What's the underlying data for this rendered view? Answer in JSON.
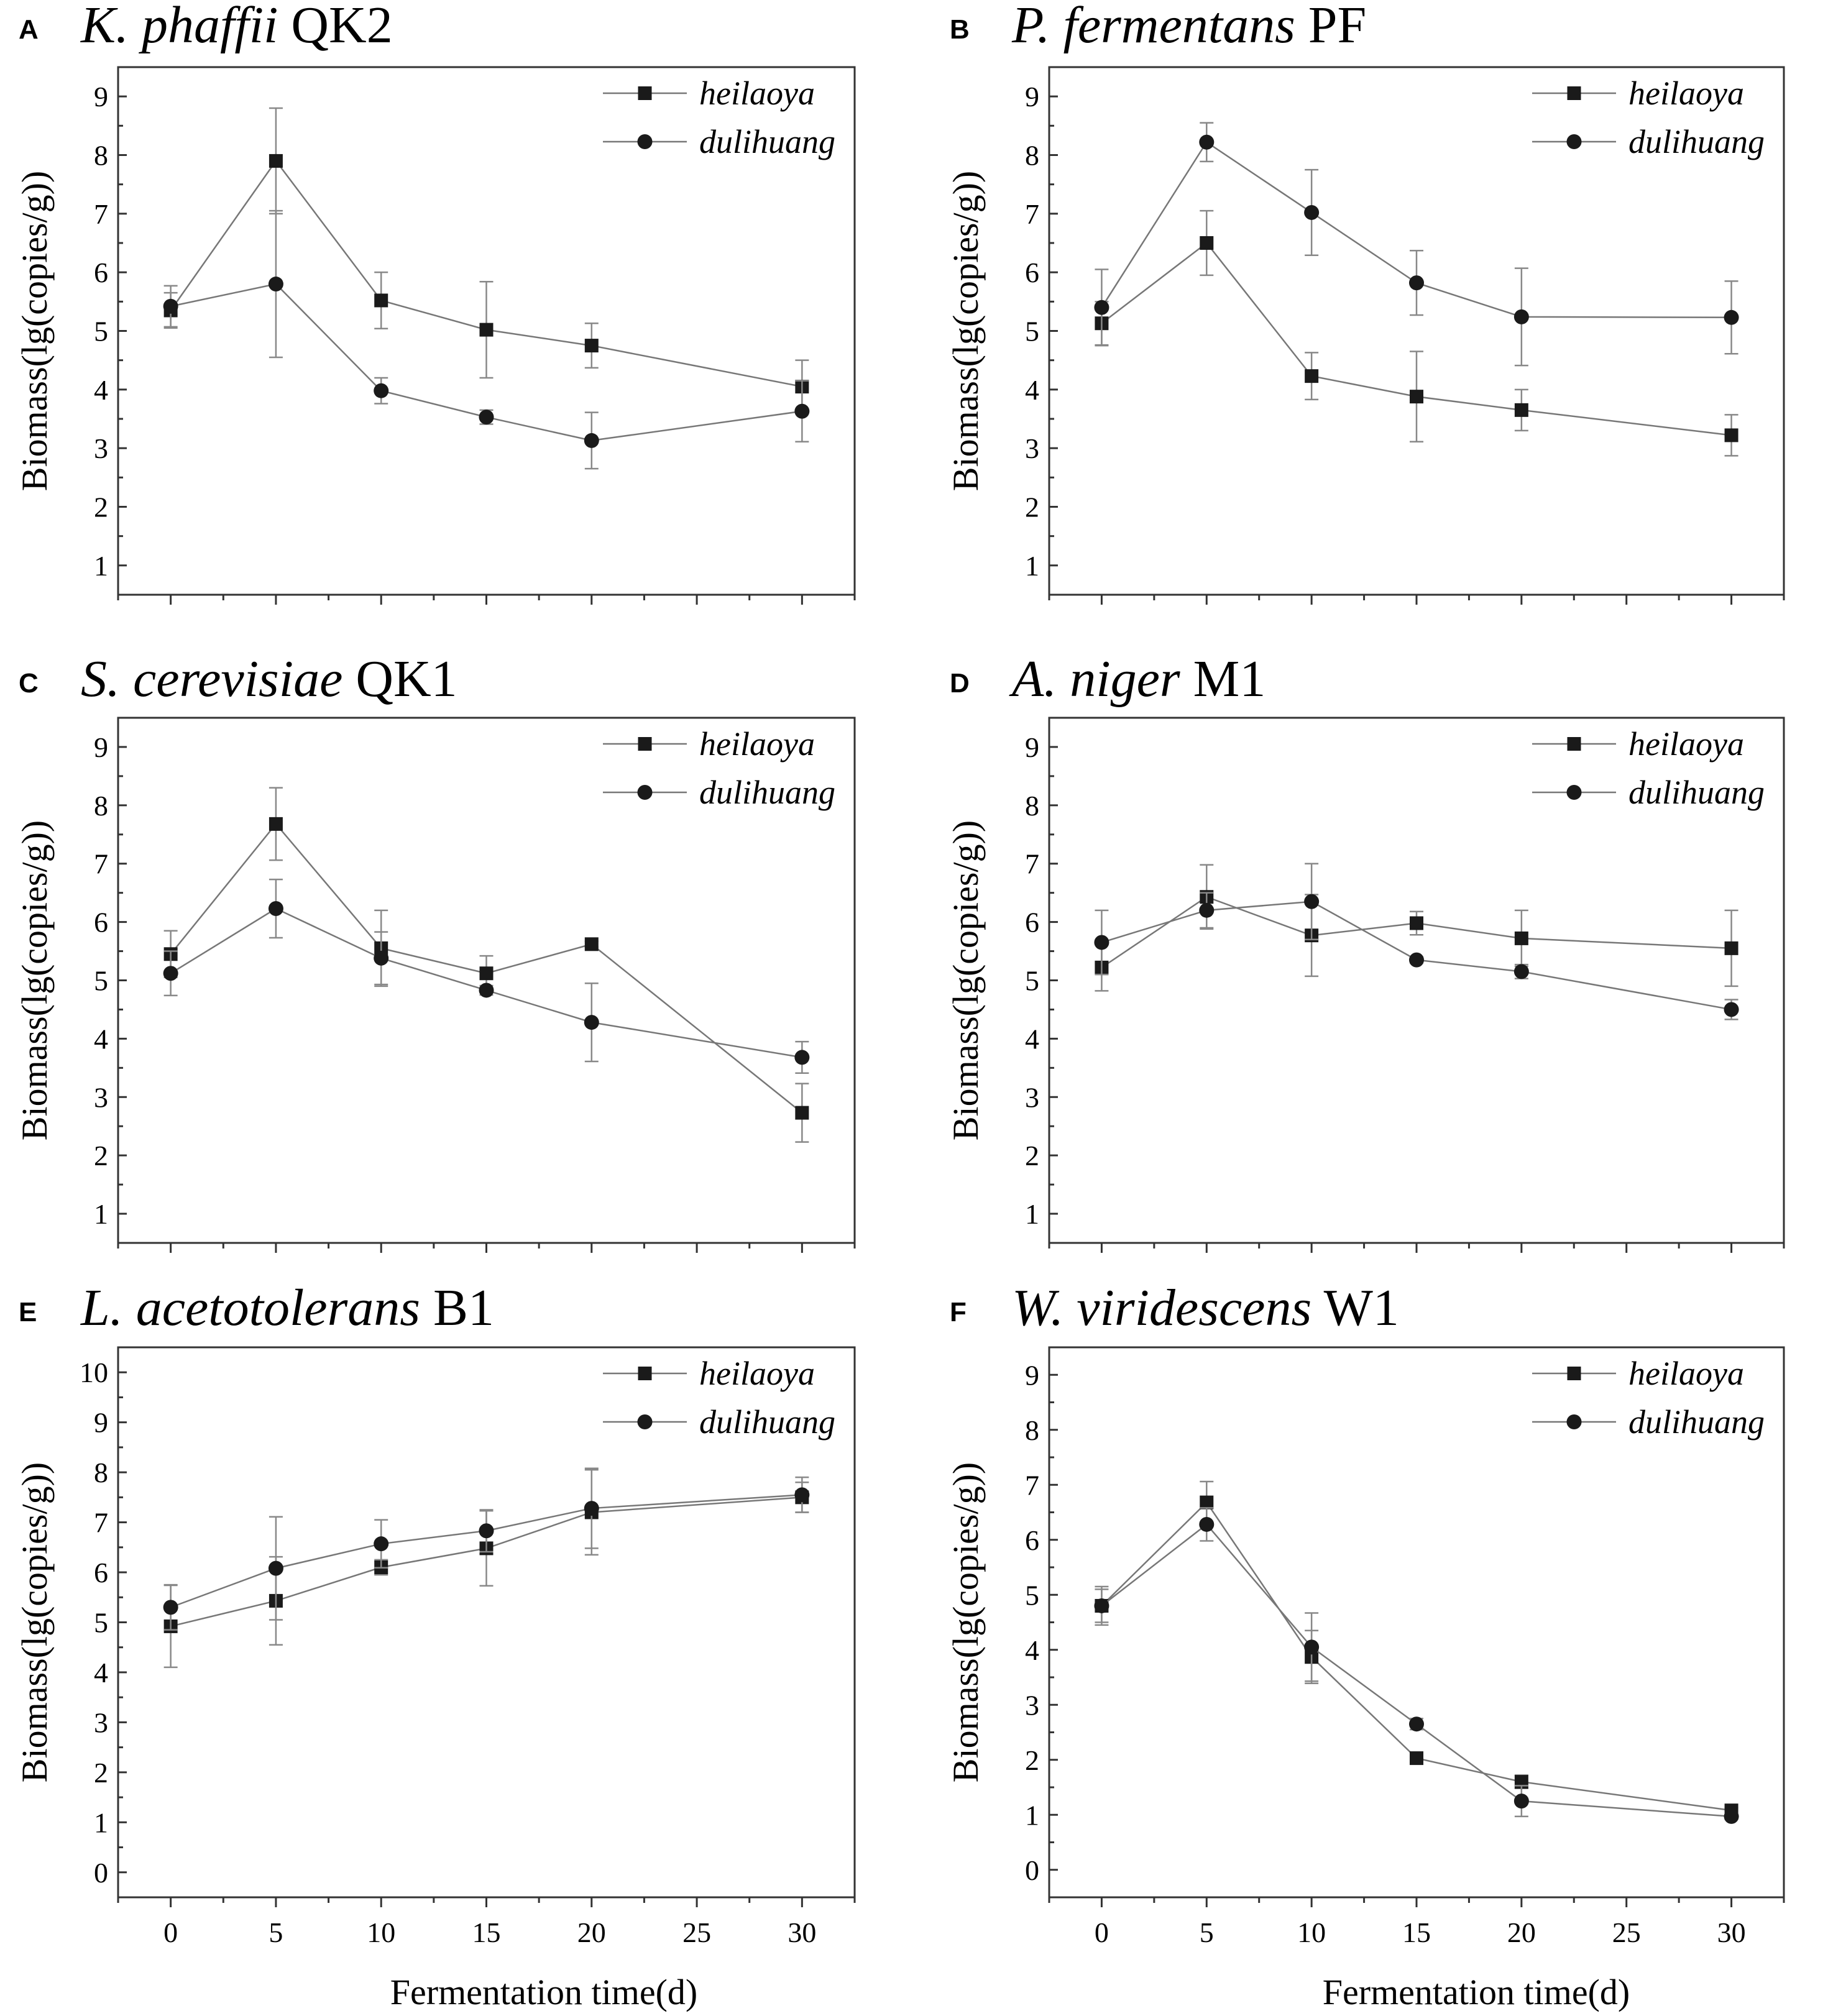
{
  "colors": {
    "marker": "#1a1a1a",
    "line": "#777777",
    "errorbar": "#888888",
    "frame": "#333333"
  },
  "figure": {
    "xlabel": "Fermentation time(d)"
  },
  "chart_data": [
    {
      "type": "line",
      "panel": "A",
      "title_species": "K. phaffii",
      "title_strain": "QK2",
      "xlabel": "",
      "ylabel": "Biomass(lg(copies/g))",
      "x": [
        0,
        5,
        10,
        15,
        20,
        30
      ],
      "ylim": [
        0.5,
        9.5
      ],
      "yticks": [
        1,
        2,
        3,
        4,
        5,
        6,
        7,
        8,
        9
      ],
      "xticks": [],
      "series": [
        {
          "name": "heilaoya",
          "marker": "square",
          "values": [
            5.35,
            7.9,
            5.52,
            5.02,
            4.75,
            4.05
          ],
          "errors": [
            0.3,
            0.9,
            0.48,
            0.82,
            0.38,
            0.45
          ]
        },
        {
          "name": "dulihuang",
          "marker": "circle",
          "values": [
            5.42,
            5.8,
            3.98,
            3.53,
            3.13,
            3.63
          ],
          "errors": [
            0.35,
            1.25,
            0.22,
            0.12,
            0.48,
            0.52
          ]
        }
      ]
    },
    {
      "type": "line",
      "panel": "B",
      "title_species": "P. fermentans",
      "title_strain": "PF",
      "xlabel": "",
      "ylabel": "Biomass(lg(copies/g))",
      "x": [
        0,
        5,
        10,
        15,
        20,
        30
      ],
      "ylim": [
        0.5,
        9.5
      ],
      "yticks": [
        1,
        2,
        3,
        4,
        5,
        6,
        7,
        8,
        9
      ],
      "xticks": [],
      "series": [
        {
          "name": "heilaoya",
          "marker": "square",
          "values": [
            5.13,
            6.5,
            4.23,
            3.88,
            3.65,
            3.22
          ],
          "errors": [
            0.37,
            0.55,
            0.4,
            0.77,
            0.35,
            0.35
          ]
        },
        {
          "name": "dulihuang",
          "marker": "circle",
          "values": [
            5.4,
            8.22,
            7.02,
            5.82,
            5.24,
            5.23
          ],
          "errors": [
            0.65,
            0.33,
            0.73,
            0.55,
            0.83,
            0.62
          ]
        }
      ]
    },
    {
      "type": "line",
      "panel": "C",
      "title_species": "S. cerevisiae",
      "title_strain": "QK1",
      "xlabel": "",
      "ylabel": "Biomass(lg(copies/g))",
      "x": [
        0,
        5,
        10,
        15,
        20,
        30
      ],
      "ylim": [
        0.5,
        9.5
      ],
      "yticks": [
        1,
        2,
        3,
        4,
        5,
        6,
        7,
        8,
        9
      ],
      "xticks": [],
      "series": [
        {
          "name": "heilaoya",
          "marker": "square",
          "values": [
            5.45,
            7.68,
            5.55,
            5.12,
            5.62,
            2.73
          ],
          "errors": [
            0.4,
            0.62,
            0.65,
            0.3,
            0.05,
            0.5
          ]
        },
        {
          "name": "dulihuang",
          "marker": "circle",
          "values": [
            5.12,
            6.23,
            5.38,
            4.83,
            4.28,
            3.68
          ],
          "errors": [
            0.38,
            0.5,
            0.45,
            0.08,
            0.67,
            0.27
          ]
        }
      ]
    },
    {
      "type": "line",
      "panel": "D",
      "title_species": "A. niger",
      "title_strain": "M1",
      "xlabel": "",
      "ylabel": "Biomass(lg(copies/g))",
      "x": [
        0,
        5,
        10,
        15,
        20,
        30
      ],
      "ylim": [
        0.5,
        9.5
      ],
      "yticks": [
        1,
        2,
        3,
        4,
        5,
        6,
        7,
        8,
        9
      ],
      "xticks": [],
      "series": [
        {
          "name": "heilaoya",
          "marker": "square",
          "values": [
            5.22,
            6.43,
            5.77,
            5.98,
            5.72,
            5.55
          ],
          "errors": [
            0.4,
            0.55,
            0.7,
            0.2,
            0.48,
            0.65
          ]
        },
        {
          "name": "dulihuang",
          "marker": "circle",
          "values": [
            5.65,
            6.2,
            6.35,
            5.35,
            5.15,
            4.5
          ],
          "errors": [
            0.55,
            0.3,
            0.65,
            0.05,
            0.12,
            0.17
          ]
        }
      ]
    },
    {
      "type": "line",
      "panel": "E",
      "title_species": "L. acetotolerans",
      "title_strain": "B1",
      "xlabel": "Fermentation time(d)",
      "ylabel": "Biomass(lg(copies/g))",
      "x": [
        0,
        5,
        10,
        15,
        20,
        30
      ],
      "ylim": [
        -0.5,
        10.5
      ],
      "yticks": [
        0,
        1,
        2,
        3,
        4,
        5,
        6,
        7,
        8,
        9,
        10
      ],
      "xticks": [
        0,
        5,
        10,
        15,
        20,
        25,
        30
      ],
      "series": [
        {
          "name": "heilaoya",
          "marker": "square",
          "values": [
            4.92,
            5.43,
            6.1,
            6.48,
            7.2,
            7.5
          ],
          "errors": [
            0.82,
            0.88,
            0.15,
            0.75,
            0.85,
            0.3
          ]
        },
        {
          "name": "dulihuang",
          "marker": "circle",
          "values": [
            5.3,
            6.08,
            6.57,
            6.83,
            7.28,
            7.55
          ],
          "errors": [
            0.45,
            1.03,
            0.48,
            0.42,
            0.8,
            0.35
          ]
        }
      ]
    },
    {
      "type": "line",
      "panel": "F",
      "title_species": "W. viridescens",
      "title_strain": "W1",
      "xlabel": "Fermentation time(d)",
      "ylabel": "Biomass(lg(copies/g))",
      "x": [
        0,
        5,
        10,
        15,
        20,
        30
      ],
      "ylim": [
        -0.5,
        9.5
      ],
      "yticks": [
        0,
        1,
        2,
        3,
        4,
        5,
        6,
        7,
        8,
        9
      ],
      "xticks": [
        0,
        5,
        10,
        15,
        20,
        25,
        30
      ],
      "series": [
        {
          "name": "heilaoya",
          "marker": "square",
          "values": [
            4.8,
            6.68,
            3.87,
            2.03,
            1.6,
            1.08
          ],
          "errors": [
            0.35,
            0.38,
            0.48,
            0.07,
            0.12,
            0.05
          ]
        },
        {
          "name": "dulihuang",
          "marker": "circle",
          "values": [
            4.8,
            6.28,
            4.05,
            2.65,
            1.25,
            0.97
          ],
          "errors": [
            0.3,
            0.3,
            0.62,
            0.1,
            0.28,
            0.05
          ]
        }
      ]
    }
  ]
}
